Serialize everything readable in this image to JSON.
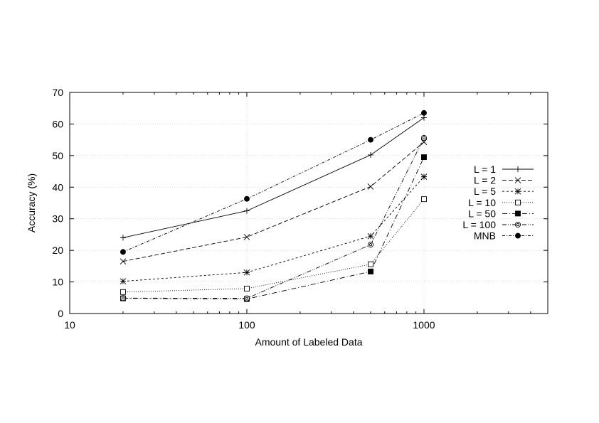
{
  "chart_data": {
    "type": "line",
    "xlabel": "Amount of Labeled Data",
    "ylabel": "Accuracy (%)",
    "x_scale": "log",
    "xlim": [
      10,
      5000
    ],
    "ylim": [
      0,
      70
    ],
    "x_ticks": [
      10,
      100,
      1000
    ],
    "y_ticks": [
      0,
      10,
      20,
      30,
      40,
      50,
      60,
      70
    ],
    "grid": true,
    "legend_position": "right",
    "x": [
      20,
      100,
      500,
      1000
    ],
    "series": [
      {
        "name": "L = 1",
        "values": [
          24.0,
          32.5,
          50.2,
          62.0
        ],
        "marker": "plus",
        "dash": "solid"
      },
      {
        "name": "L = 2",
        "values": [
          16.5,
          24.2,
          40.2,
          54.3
        ],
        "marker": "cross",
        "dash": "dashed"
      },
      {
        "name": "L = 5",
        "values": [
          10.2,
          13.0,
          24.5,
          43.3
        ],
        "marker": "star",
        "dash": "short-dashed"
      },
      {
        "name": "L = 10",
        "values": [
          6.8,
          7.9,
          15.6,
          36.2
        ],
        "marker": "open-square",
        "dash": "dotted"
      },
      {
        "name": "L = 50",
        "values": [
          4.8,
          4.6,
          13.3,
          49.5
        ],
        "marker": "filled-square",
        "dash": "dash-dot"
      },
      {
        "name": "L = 100",
        "values": [
          4.9,
          4.8,
          21.8,
          55.6
        ],
        "marker": "open-circle",
        "dash": "dash-dot-dot"
      },
      {
        "name": "MNB",
        "values": [
          19.5,
          36.3,
          55.0,
          63.5
        ],
        "marker": "filled-circle",
        "dash": "dash-dot-dense"
      }
    ]
  }
}
